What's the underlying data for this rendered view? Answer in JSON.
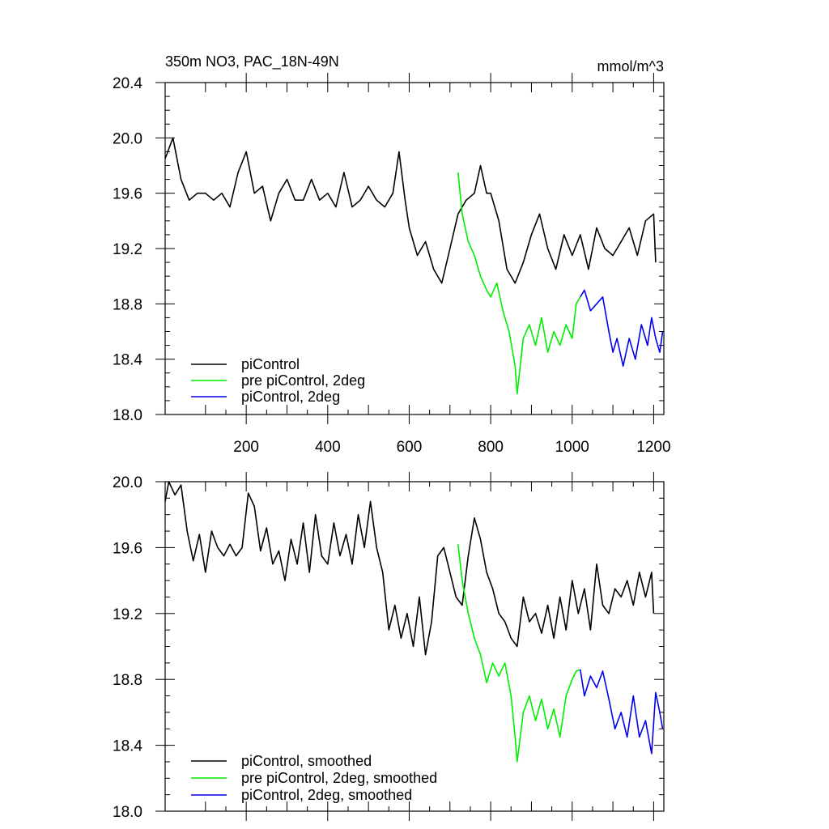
{
  "chart_data": [
    {
      "type": "line",
      "title": "350m NO3, PAC_18N-49N",
      "units": "mmol/m^3",
      "xlim": [
        1,
        1225
      ],
      "ylim": [
        18.0,
        20.4
      ],
      "xticks": [
        200,
        400,
        600,
        800,
        1000,
        1200
      ],
      "yticks": [
        18.0,
        18.4,
        18.8,
        19.2,
        19.6,
        20.0,
        20.4
      ],
      "ytick_labels": [
        "18.0",
        "18.4",
        "18.8",
        "19.2",
        "19.6",
        "20.0",
        "20.4"
      ],
      "xtick_labels": [
        "200",
        "400",
        "600",
        "800",
        "1000",
        "1200"
      ],
      "legend": "bottom-left",
      "series": [
        {
          "name": "piControl",
          "color": "#000000",
          "x": [
            1,
            20,
            40,
            60,
            80,
            100,
            120,
            140,
            160,
            180,
            200,
            220,
            240,
            260,
            280,
            300,
            320,
            340,
            360,
            380,
            400,
            420,
            440,
            460,
            480,
            500,
            520,
            540,
            560,
            575,
            590,
            600,
            620,
            640,
            660,
            680,
            700,
            720,
            740,
            760,
            775,
            790,
            800,
            820,
            840,
            860,
            880,
            900,
            920,
            940,
            960,
            980,
            1000,
            1020,
            1040,
            1060,
            1080,
            1100,
            1120,
            1140,
            1160,
            1180,
            1200,
            1205
          ],
          "y": [
            19.85,
            20.0,
            19.7,
            19.55,
            19.6,
            19.6,
            19.55,
            19.6,
            19.5,
            19.75,
            19.9,
            19.6,
            19.65,
            19.4,
            19.6,
            19.7,
            19.55,
            19.55,
            19.7,
            19.55,
            19.6,
            19.5,
            19.75,
            19.5,
            19.55,
            19.65,
            19.55,
            19.5,
            19.6,
            19.9,
            19.55,
            19.35,
            19.15,
            19.25,
            19.05,
            18.95,
            19.2,
            19.45,
            19.55,
            19.6,
            19.8,
            19.6,
            19.6,
            19.4,
            19.05,
            18.95,
            19.1,
            19.3,
            19.45,
            19.2,
            19.05,
            19.3,
            19.15,
            19.3,
            19.05,
            19.35,
            19.2,
            19.15,
            19.25,
            19.35,
            19.15,
            19.4,
            19.45,
            19.1
          ]
        },
        {
          "name": "pre piControl, 2deg",
          "color": "#00ee00",
          "x": [
            720,
            730,
            745,
            760,
            775,
            790,
            800,
            815,
            830,
            845,
            860,
            865,
            880,
            895,
            910,
            925,
            940,
            955,
            970,
            985,
            1000,
            1010,
            1020
          ],
          "y": [
            19.75,
            19.45,
            19.25,
            19.15,
            19.0,
            18.9,
            18.85,
            18.95,
            18.75,
            18.6,
            18.35,
            18.15,
            18.55,
            18.65,
            18.5,
            18.7,
            18.45,
            18.6,
            18.5,
            18.65,
            18.55,
            18.8,
            18.85
          ]
        },
        {
          "name": "piControl, 2deg",
          "color": "#0000ee",
          "x": [
            1020,
            1030,
            1045,
            1060,
            1075,
            1090,
            1100,
            1110,
            1125,
            1140,
            1155,
            1170,
            1185,
            1195,
            1205,
            1215,
            1222
          ],
          "y": [
            18.85,
            18.9,
            18.75,
            18.8,
            18.85,
            18.6,
            18.45,
            18.55,
            18.35,
            18.55,
            18.4,
            18.65,
            18.5,
            18.7,
            18.55,
            18.45,
            18.6
          ]
        }
      ]
    },
    {
      "type": "line",
      "title": "",
      "xlim": [
        1,
        1225
      ],
      "ylim": [
        18.0,
        20.0
      ],
      "xticks": [
        200,
        400,
        600,
        800,
        1000,
        1200
      ],
      "yticks": [
        18.0,
        18.4,
        18.8,
        19.2,
        19.6,
        20.0
      ],
      "ytick_labels": [
        "18.0",
        "18.4",
        "18.8",
        "19.2",
        "19.6",
        "20.0"
      ],
      "legend": "bottom-left",
      "series": [
        {
          "name": "piControl, smoothed",
          "color": "#000000",
          "x": [
            1,
            10,
            25,
            40,
            55,
            70,
            85,
            100,
            115,
            130,
            145,
            160,
            175,
            190,
            205,
            220,
            235,
            250,
            265,
            280,
            295,
            310,
            325,
            340,
            355,
            370,
            385,
            400,
            415,
            430,
            445,
            460,
            475,
            490,
            505,
            520,
            535,
            550,
            565,
            580,
            595,
            610,
            625,
            640,
            655,
            670,
            685,
            700,
            715,
            730,
            745,
            760,
            775,
            790,
            805,
            820,
            835,
            850,
            865,
            880,
            895,
            910,
            925,
            940,
            955,
            970,
            985,
            1000,
            1015,
            1030,
            1045,
            1060,
            1075,
            1090,
            1105,
            1120,
            1135,
            1150,
            1165,
            1180,
            1195,
            1200
          ],
          "y": [
            19.88,
            20.0,
            19.92,
            19.98,
            19.7,
            19.52,
            19.68,
            19.45,
            19.7,
            19.6,
            19.55,
            19.62,
            19.55,
            19.6,
            19.93,
            19.85,
            19.58,
            19.72,
            19.5,
            19.58,
            19.4,
            19.65,
            19.5,
            19.75,
            19.45,
            19.8,
            19.55,
            19.5,
            19.75,
            19.55,
            19.68,
            19.5,
            19.8,
            19.6,
            19.88,
            19.6,
            19.45,
            19.1,
            19.25,
            19.05,
            19.2,
            19.0,
            19.3,
            18.95,
            19.15,
            19.55,
            19.6,
            19.45,
            19.3,
            19.25,
            19.55,
            19.78,
            19.65,
            19.45,
            19.35,
            19.2,
            19.15,
            19.05,
            19.0,
            19.3,
            19.15,
            19.2,
            19.08,
            19.25,
            19.05,
            19.3,
            19.1,
            19.4,
            19.2,
            19.35,
            19.1,
            19.5,
            19.25,
            19.2,
            19.35,
            19.3,
            19.4,
            19.25,
            19.45,
            19.3,
            19.45,
            19.2
          ]
        },
        {
          "name": "pre piControl, 2deg, smoothed",
          "color": "#00ee00",
          "x": [
            720,
            730,
            745,
            760,
            775,
            790,
            805,
            820,
            835,
            850,
            860,
            865,
            880,
            895,
            910,
            925,
            940,
            955,
            970,
            985,
            1000,
            1010,
            1020
          ],
          "y": [
            19.62,
            19.4,
            19.2,
            19.05,
            18.95,
            18.78,
            18.9,
            18.82,
            18.9,
            18.7,
            18.45,
            18.3,
            18.6,
            18.7,
            18.55,
            18.68,
            18.5,
            18.62,
            18.45,
            18.7,
            18.8,
            18.85,
            18.86
          ]
        },
        {
          "name": "piControl, 2deg, smoothed",
          "color": "#0000ee",
          "x": [
            1020,
            1030,
            1045,
            1060,
            1075,
            1090,
            1105,
            1120,
            1135,
            1150,
            1165,
            1180,
            1195,
            1205,
            1215,
            1222
          ],
          "y": [
            18.86,
            18.7,
            18.82,
            18.75,
            18.85,
            18.68,
            18.5,
            18.6,
            18.45,
            18.7,
            18.45,
            18.55,
            18.35,
            18.72,
            18.6,
            18.5
          ]
        }
      ]
    }
  ]
}
